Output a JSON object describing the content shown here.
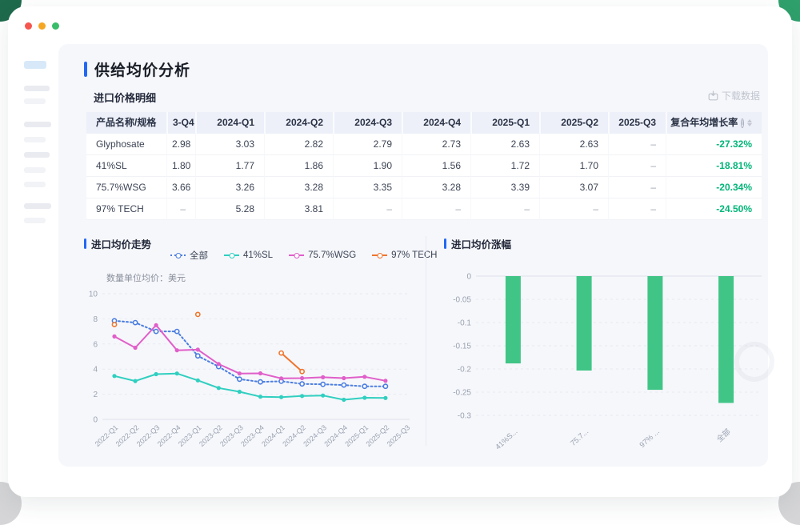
{
  "colors": {
    "accent_blue": "#2468F2",
    "positive_green": "#00B578",
    "bar_green": "#41C587",
    "panel_bg": "#F6F7FB",
    "table_header_bg": "#EDF0F9"
  },
  "window": {
    "dots": [
      "red",
      "orange",
      "green"
    ]
  },
  "page": {
    "title": "供给均价分析"
  },
  "table_card": {
    "title": "进口价格明细",
    "download_label": "下载数据",
    "columns": [
      "产品名称/规格",
      "3-Q4",
      "2024-Q1",
      "2024-Q2",
      "2024-Q3",
      "2024-Q4",
      "2025-Q1",
      "2025-Q2",
      "2025-Q3",
      "复合年均增长率"
    ],
    "rows": [
      {
        "name": "Glyphosate",
        "values": [
          "2.98",
          "3.03",
          "2.82",
          "2.79",
          "2.73",
          "2.63",
          "2.63",
          "–"
        ],
        "cagr": "-27.32%"
      },
      {
        "name": "41%SL",
        "values": [
          "1.80",
          "1.77",
          "1.86",
          "1.90",
          "1.56",
          "1.72",
          "1.70",
          "–"
        ],
        "cagr": "-18.81%"
      },
      {
        "name": "75.7%WSG",
        "values": [
          "3.66",
          "3.26",
          "3.28",
          "3.35",
          "3.28",
          "3.39",
          "3.07",
          "–"
        ],
        "cagr": "-20.34%"
      },
      {
        "name": "97% TECH",
        "values": [
          "–",
          "5.28",
          "3.81",
          "–",
          "–",
          "–",
          "–",
          "–"
        ],
        "cagr": "-24.50%"
      }
    ]
  },
  "chart_data": [
    {
      "type": "line",
      "title": "进口均价走势",
      "subtitle": "数量单位均价：美元",
      "legend_position": "top",
      "grid": "dashed-horizontal",
      "x": [
        "2022-Q1",
        "2022-Q2",
        "2022-Q3",
        "2022-Q4",
        "2023-Q1",
        "2023-Q2",
        "2023-Q3",
        "2023-Q4",
        "2024-Q1",
        "2024-Q2",
        "2024-Q3",
        "2024-Q4",
        "2025-Q1",
        "2025-Q2",
        "2025-Q3"
      ],
      "ylim": [
        0,
        10
      ],
      "yticks": [
        0,
        2,
        4,
        6,
        8,
        10
      ],
      "series": [
        {
          "name": "全部",
          "color": "#4A7DE0",
          "style": "dotted",
          "marker": "hollow",
          "values": [
            7.85,
            7.7,
            7.0,
            7.0,
            5.05,
            4.2,
            3.2,
            2.98,
            3.03,
            2.82,
            2.79,
            2.73,
            2.63,
            2.63,
            null
          ]
        },
        {
          "name": "41%SL",
          "color": "#30CFC0",
          "style": "solid",
          "marker": "filled",
          "values": [
            3.45,
            3.05,
            3.6,
            3.65,
            3.1,
            2.5,
            2.2,
            1.8,
            1.77,
            1.86,
            1.9,
            1.56,
            1.72,
            1.7,
            null
          ]
        },
        {
          "name": "75.7%WSG",
          "color": "#E05FC9",
          "style": "solid",
          "marker": "filled",
          "values": [
            6.6,
            5.7,
            7.5,
            5.5,
            5.55,
            4.4,
            3.65,
            3.66,
            3.26,
            3.28,
            3.35,
            3.28,
            3.39,
            3.07,
            null
          ]
        },
        {
          "name": "97% TECH",
          "color": "#F0752E",
          "style": "solid",
          "marker": "hollow",
          "values": [
            7.55,
            null,
            null,
            null,
            8.35,
            null,
            null,
            null,
            5.28,
            3.81,
            null,
            null,
            null,
            null,
            null
          ]
        }
      ]
    },
    {
      "type": "bar",
      "title": "进口均价涨幅",
      "categories": [
        "41%S...",
        "75.7...",
        "97% ...",
        "全部"
      ],
      "values": [
        -0.1881,
        -0.2034,
        -0.245,
        -0.2732
      ],
      "bar_color": "#41C587",
      "ylim": [
        -0.3,
        0
      ],
      "yticks": [
        0,
        -0.05,
        -0.1,
        -0.15,
        -0.2,
        -0.25,
        -0.3
      ],
      "grid": "dashed-horizontal"
    }
  ]
}
